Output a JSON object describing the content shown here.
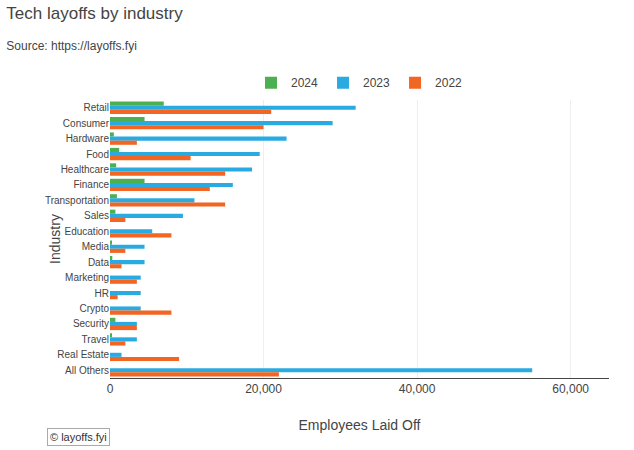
{
  "chart_data": {
    "type": "bar",
    "orientation": "horizontal",
    "title": "Tech layoffs by industry",
    "subtitle": "Source: https://layoffs.fyi",
    "annotations": [
      "© layoffs.fyi"
    ],
    "xlabel": "Employees Laid Off",
    "ylabel": "Industry",
    "categories": [
      "Retail",
      "Consumer",
      "Hardware",
      "Food",
      "Healthcare",
      "Finance",
      "Transportation",
      "Sales",
      "Education",
      "Media",
      "Data",
      "Marketing",
      "HR",
      "Crypto",
      "Security",
      "Travel",
      "Real Estate",
      "All Others"
    ],
    "series": [
      {
        "name": "2024",
        "color": "#4CAF50",
        "values": [
          7000,
          4500,
          500,
          1200,
          800,
          4500,
          900,
          700,
          0,
          200,
          300,
          0,
          0,
          0,
          700,
          200,
          0,
          0
        ]
      },
      {
        "name": "2023",
        "color": "#29ABE2",
        "values": [
          32000,
          29000,
          23000,
          19500,
          18500,
          16000,
          11000,
          9500,
          5500,
          4500,
          4500,
          4000,
          4000,
          4000,
          3500,
          3500,
          1500,
          55000
        ]
      },
      {
        "name": "2022",
        "color": "#F26522",
        "values": [
          21000,
          20000,
          3500,
          10500,
          15000,
          13000,
          15000,
          2000,
          8000,
          2000,
          1500,
          3500,
          1000,
          8000,
          3500,
          2000,
          9000,
          22000
        ]
      }
    ],
    "xlim": [
      0,
      65000
    ],
    "xticks": [
      0,
      {
        "value": 20000,
        "label": "20,000"
      },
      {
        "value": 40000,
        "label": "40,000"
      },
      {
        "value": 60000,
        "label": "60,000"
      }
    ],
    "grid": true,
    "legend": "top"
  }
}
